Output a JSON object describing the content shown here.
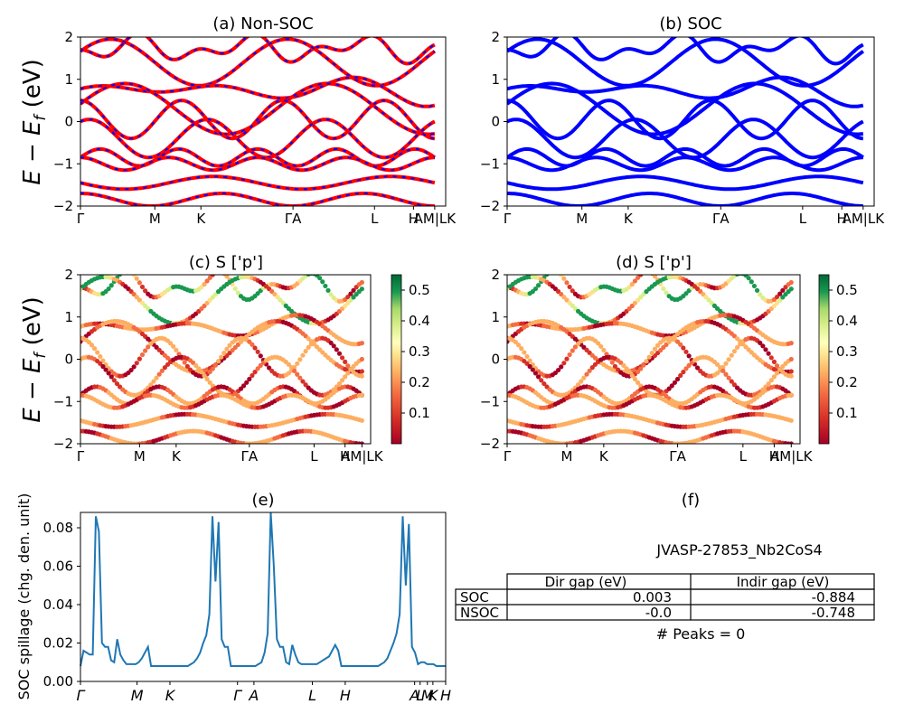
{
  "figure": {
    "material": "JVASP-27853_Nb2CoS4",
    "panels": {
      "a_title": "(a) Non-SOC",
      "b_title": "(b) SOC",
      "c_title": "(c)  S ['p']",
      "d_title": "(d) S ['p']",
      "e_title": "(e)",
      "f_title": "(f)"
    },
    "band_ylabel_main": "E − E",
    "band_ylabel_sub": "f",
    "band_ylabel_unit": " (eV)",
    "spillage_ylabel": "SOC spillage (chg. den. unit)",
    "kpath_labels": [
      "Γ",
      "M",
      "K",
      "ΓA",
      "L",
      "H",
      "AM|LK"
    ],
    "kpath_labels_e": [
      "Γ",
      "M",
      "K",
      "Γ",
      "A",
      "L",
      "H",
      "A",
      "L",
      "M",
      "K",
      "H"
    ],
    "colorbar_ticks": [
      "0.5",
      "0.4",
      "0.3",
      "0.2",
      "0.1"
    ],
    "colors": {
      "nonsoc": "#ff0000",
      "soc": "#0000ff",
      "spill": "#1f77b4"
    }
  },
  "table": {
    "headers": [
      "Dir gap (eV)",
      "Indir gap (eV)"
    ],
    "rows": [
      {
        "label": "SOC",
        "dir": "0.003",
        "indir": "-0.884"
      },
      {
        "label": "NSOC",
        "dir": "-0.0",
        "indir": "-0.748"
      }
    ],
    "peaks": "# Peaks = 0"
  },
  "chart_data": [
    {
      "type": "line",
      "title": "(a) Non-SOC",
      "ylabel": "E − E_f (eV)",
      "ylim": [
        -2,
        2
      ],
      "yticks": [
        -2,
        -1,
        0,
        1,
        2
      ],
      "xtick_labels": [
        "Γ",
        "M",
        "K",
        "ΓA",
        "L",
        "H",
        "AM|LK"
      ],
      "series": [
        {
          "name": "",
          "color": "#ff0000",
          "description": "band structure, Non-SOC"
        }
      ]
    },
    {
      "type": "line",
      "title": "(b) SOC",
      "ylim": [
        -2,
        2
      ],
      "yticks": [
        -2,
        -1,
        0,
        1,
        2
      ],
      "xtick_labels": [
        "Γ",
        "M",
        "K",
        "ΓA",
        "L",
        "H",
        "AM|LK"
      ],
      "series": [
        {
          "name": "",
          "color": "#0000ff"
        }
      ]
    },
    {
      "type": "scatter",
      "title": "(c)  S ['p']",
      "ylabel": "E − E_f (eV)",
      "ylim": [
        -2,
        2
      ],
      "colorbar": {
        "min": 0.0,
        "max": 0.55,
        "ticks": [
          0.1,
          0.2,
          0.3,
          0.4,
          0.5
        ],
        "cmap": "RdYlGn"
      },
      "xtick_labels": [
        "Γ",
        "M",
        "K",
        "ΓA",
        "L",
        "H",
        "AM|LK"
      ]
    },
    {
      "type": "scatter",
      "title": "(d) S ['p']",
      "ylim": [
        -2,
        2
      ],
      "colorbar": {
        "min": 0.0,
        "max": 0.55,
        "ticks": [
          0.1,
          0.2,
          0.3,
          0.4,
          0.5
        ],
        "cmap": "RdYlGn"
      },
      "xtick_labels": [
        "Γ",
        "M",
        "K",
        "ΓA",
        "L",
        "H",
        "AM|LK"
      ]
    },
    {
      "type": "line",
      "title": "(e)",
      "ylabel": "SOC spillage (chg. den. unit)",
      "ylim": [
        0,
        0.088
      ],
      "yticks": [
        0.0,
        0.02,
        0.04,
        0.06,
        0.08
      ],
      "xtick_labels": [
        "Γ",
        "M",
        "K",
        "Γ",
        "A",
        "L",
        "H",
        "A",
        "L",
        "M",
        "K",
        "H"
      ],
      "x": [
        0,
        1,
        2,
        3,
        4,
        5,
        6,
        7,
        8,
        9,
        10,
        11,
        12,
        13,
        14,
        15,
        16,
        17,
        18,
        19,
        20,
        21,
        22,
        23,
        24,
        25,
        26,
        27,
        28,
        29,
        30,
        31,
        32,
        33,
        34,
        35,
        36,
        37,
        38,
        39,
        40,
        41,
        42,
        43,
        44,
        45,
        46,
        47,
        48,
        49,
        50,
        51,
        52,
        53,
        54,
        55,
        56,
        57,
        58,
        59,
        60,
        61,
        62,
        63,
        64,
        65,
        66,
        67,
        68,
        69,
        70,
        71,
        72,
        73,
        74,
        75,
        76,
        77,
        78,
        79,
        80,
        81,
        82,
        83,
        84,
        85,
        86,
        87,
        88,
        89,
        90,
        91,
        92,
        93,
        94,
        95,
        96,
        97,
        98,
        99,
        100,
        101,
        102,
        103,
        104,
        105,
        106,
        107,
        108,
        109,
        110,
        111,
        112,
        113,
        114,
        115,
        116,
        117,
        118,
        119
      ],
      "series": [
        {
          "name": "",
          "values": [
            0.008,
            0.016,
            0.015,
            0.014,
            0.014,
            0.086,
            0.078,
            0.02,
            0.018,
            0.018,
            0.011,
            0.01,
            0.022,
            0.014,
            0.011,
            0.009,
            0.009,
            0.009,
            0.009,
            0.01,
            0.012,
            0.015,
            0.018,
            0.008,
            0.008,
            0.008,
            0.008,
            0.008,
            0.008,
            0.008,
            0.008,
            0.008,
            0.008,
            0.008,
            0.008,
            0.008,
            0.009,
            0.01,
            0.012,
            0.015,
            0.02,
            0.024,
            0.035,
            0.086,
            0.052,
            0.083,
            0.022,
            0.018,
            0.018,
            0.008,
            0.008,
            0.008,
            0.008,
            0.008,
            0.008,
            0.008,
            0.008,
            0.008,
            0.009,
            0.01,
            0.015,
            0.025,
            0.088,
            0.06,
            0.022,
            0.018,
            0.018,
            0.01,
            0.009,
            0.019,
            0.014,
            0.01,
            0.009,
            0.009,
            0.009,
            0.009,
            0.009,
            0.009,
            0.01,
            0.011,
            0.012,
            0.013,
            0.016,
            0.019,
            0.016,
            0.008,
            0.008,
            0.008,
            0.008,
            0.008,
            0.008,
            0.008,
            0.008,
            0.008,
            0.008,
            0.008,
            0.008,
            0.008,
            0.009,
            0.01,
            0.012,
            0.016,
            0.02,
            0.025,
            0.035,
            0.086,
            0.05,
            0.082,
            0.018,
            0.015,
            0.009,
            0.01,
            0.01,
            0.009,
            0.009,
            0.009,
            0.008,
            0.008,
            0.008,
            0.008
          ]
        }
      ]
    }
  ]
}
